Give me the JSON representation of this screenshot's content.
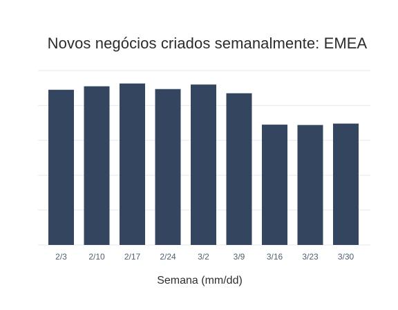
{
  "chart_data": {
    "type": "bar",
    "title": "Novos negócios criados semanalmente: EMEA",
    "xlabel": "Semana (mm/dd)",
    "ylabel": "",
    "categories": [
      "2/3",
      "2/10",
      "2/17",
      "2/24",
      "3/2",
      "3/9",
      "3/16",
      "3/23",
      "3/30"
    ],
    "values": [
      4.45,
      4.55,
      4.63,
      4.47,
      4.6,
      4.35,
      3.45,
      3.44,
      3.48
    ],
    "ylim": [
      0,
      5
    ],
    "grid": true,
    "y_tick_labels_shown": false,
    "colors": {
      "bar": "#34465f",
      "grid": "#e6e8ec",
      "tick_label": "#4f5d73",
      "title": "#2b2b2b"
    }
  }
}
